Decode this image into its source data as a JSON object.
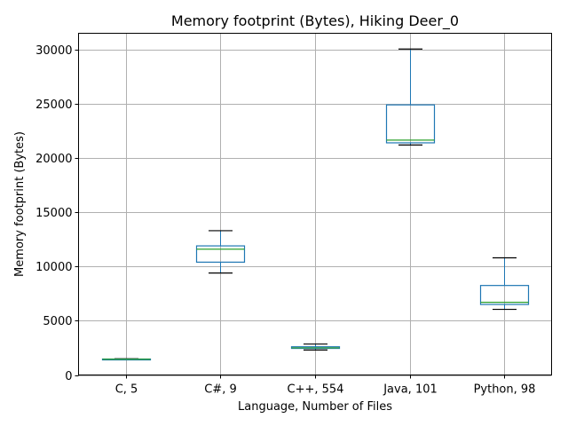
{
  "chart_data": {
    "type": "box",
    "title": "Memory footprint (Bytes), Hiking Deer_0",
    "xlabel": "Language, Number of Files",
    "ylabel": "Memory footprint (Bytes)",
    "ylim": [
      0,
      31500
    ],
    "yticks": [
      0,
      5000,
      10000,
      15000,
      20000,
      25000,
      30000
    ],
    "grid": true,
    "categories": [
      "C, 5",
      "C#, 9",
      "C++, 554",
      "Java, 101",
      "Python, 98"
    ],
    "boxes": [
      {
        "category": "C, 5",
        "whisker_low": 1400,
        "q1": 1430,
        "median": 1450,
        "q3": 1470,
        "whisker_high": 1500
      },
      {
        "category": "C#, 9",
        "whisker_low": 9400,
        "q1": 10400,
        "median": 11600,
        "q3": 11900,
        "whisker_high": 13300
      },
      {
        "category": "C++, 554",
        "whisker_low": 2300,
        "q1": 2450,
        "median": 2500,
        "q3": 2600,
        "whisker_high": 2850
      },
      {
        "category": "Java, 101",
        "whisker_low": 21200,
        "q1": 21400,
        "median": 21650,
        "q3": 24900,
        "whisker_high": 30050
      },
      {
        "category": "Python, 98",
        "whisker_low": 6050,
        "q1": 6500,
        "median": 6700,
        "q3": 8250,
        "whisker_high": 10800
      }
    ],
    "colors": {
      "box": "#1f77b4",
      "median": "#2ca02c",
      "whisker_cap": "#000000",
      "grid": "#b0b0b0"
    }
  }
}
